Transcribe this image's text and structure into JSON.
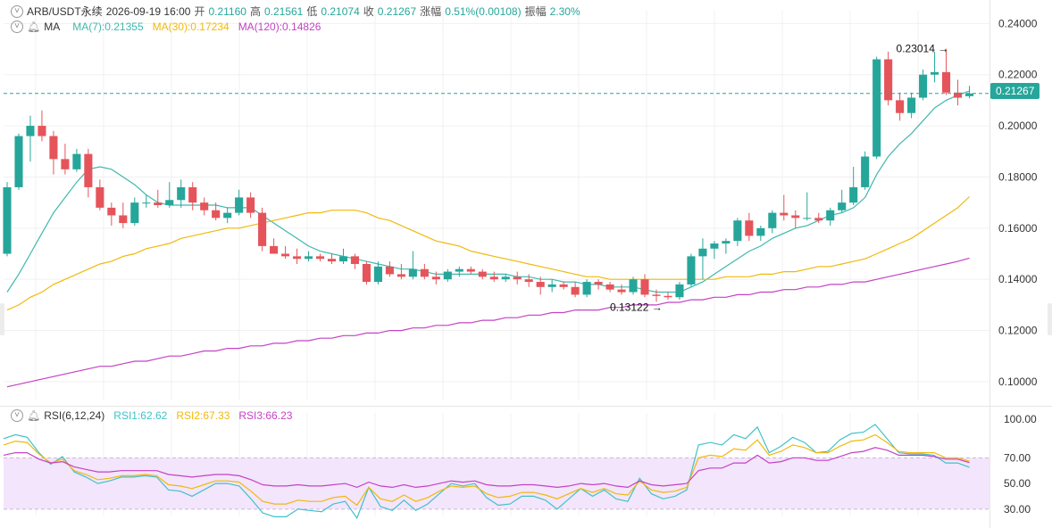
{
  "header": {
    "symbol": "ARB/USDT永续",
    "datetime": "2026-09-19 16:00",
    "open_label": "开",
    "open": "0.21160",
    "high_label": "高",
    "high": "0.21561",
    "low_label": "低",
    "low": "0.21074",
    "close_label": "收",
    "close": "0.21267",
    "change_label": "涨幅",
    "change": "0.51%(0.00108)",
    "amp_label": "振幅",
    "amp": "2.30%"
  },
  "ma_legend": {
    "label": "MA",
    "ma7": "MA(7):0.21355",
    "ma30": "MA(30):0.17234",
    "ma120": "MA(120):0.14826"
  },
  "rsi_legend": {
    "label": "RSI(6,12,24)",
    "rsi1": "RSI1:62.62",
    "rsi2": "RSI2:67.33",
    "rsi3": "RSI3:66.23"
  },
  "current_price_badge": "0.21267",
  "colors": {
    "up": "#26a69a",
    "down": "#e5545a",
    "ma7": "#3fb8ad",
    "ma30": "#f0b90b",
    "ma120": "#c442c4",
    "rsi1": "#3fc2c8",
    "rsi2": "#f0b90b",
    "rsi3": "#c442c4",
    "rsi_band": "#f3e5fb",
    "grid": "#f0f0f0",
    "axis_text": "#333333"
  },
  "chart_data": [
    {
      "type": "candlestick",
      "title": "",
      "y_ticks": [
        "0.24000",
        "0.22000",
        "0.20000",
        "0.18000",
        "0.16000",
        "0.14000",
        "0.12000",
        "0.10000"
      ],
      "ylim": [
        0.093,
        0.245
      ],
      "grid": true,
      "annotations": {
        "max_label": "0.23014",
        "min_label": "0.13122",
        "last_price": 0.21267
      },
      "candles": [
        {
          "o": 0.15,
          "h": 0.178,
          "l": 0.149,
          "c": 0.176
        },
        {
          "o": 0.176,
          "h": 0.197,
          "l": 0.175,
          "c": 0.196
        },
        {
          "o": 0.196,
          "h": 0.204,
          "l": 0.186,
          "c": 0.2
        },
        {
          "o": 0.2,
          "h": 0.206,
          "l": 0.194,
          "c": 0.196
        },
        {
          "o": 0.196,
          "h": 0.198,
          "l": 0.181,
          "c": 0.187
        },
        {
          "o": 0.187,
          "h": 0.193,
          "l": 0.181,
          "c": 0.183
        },
        {
          "o": 0.183,
          "h": 0.191,
          "l": 0.182,
          "c": 0.189
        },
        {
          "o": 0.189,
          "h": 0.191,
          "l": 0.172,
          "c": 0.176
        },
        {
          "o": 0.176,
          "h": 0.179,
          "l": 0.167,
          "c": 0.168
        },
        {
          "o": 0.168,
          "h": 0.17,
          "l": 0.161,
          "c": 0.165
        },
        {
          "o": 0.165,
          "h": 0.17,
          "l": 0.16,
          "c": 0.162
        },
        {
          "o": 0.162,
          "h": 0.172,
          "l": 0.161,
          "c": 0.17
        },
        {
          "o": 0.17,
          "h": 0.173,
          "l": 0.168,
          "c": 0.17
        },
        {
          "o": 0.17,
          "h": 0.175,
          "l": 0.168,
          "c": 0.169
        },
        {
          "o": 0.169,
          "h": 0.178,
          "l": 0.168,
          "c": 0.171
        },
        {
          "o": 0.171,
          "h": 0.179,
          "l": 0.168,
          "c": 0.176
        },
        {
          "o": 0.176,
          "h": 0.178,
          "l": 0.167,
          "c": 0.17
        },
        {
          "o": 0.17,
          "h": 0.172,
          "l": 0.165,
          "c": 0.167
        },
        {
          "o": 0.167,
          "h": 0.17,
          "l": 0.163,
          "c": 0.164
        },
        {
          "o": 0.164,
          "h": 0.168,
          "l": 0.162,
          "c": 0.166
        },
        {
          "o": 0.166,
          "h": 0.175,
          "l": 0.165,
          "c": 0.172
        },
        {
          "o": 0.172,
          "h": 0.174,
          "l": 0.164,
          "c": 0.166
        },
        {
          "o": 0.166,
          "h": 0.168,
          "l": 0.151,
          "c": 0.153
        },
        {
          "o": 0.153,
          "h": 0.156,
          "l": 0.15,
          "c": 0.15
        },
        {
          "o": 0.15,
          "h": 0.153,
          "l": 0.148,
          "c": 0.149
        },
        {
          "o": 0.149,
          "h": 0.152,
          "l": 0.146,
          "c": 0.148
        },
        {
          "o": 0.148,
          "h": 0.151,
          "l": 0.147,
          "c": 0.149
        },
        {
          "o": 0.149,
          "h": 0.15,
          "l": 0.147,
          "c": 0.148
        },
        {
          "o": 0.148,
          "h": 0.15,
          "l": 0.146,
          "c": 0.147
        },
        {
          "o": 0.147,
          "h": 0.152,
          "l": 0.146,
          "c": 0.149
        },
        {
          "o": 0.149,
          "h": 0.15,
          "l": 0.144,
          "c": 0.146
        },
        {
          "o": 0.146,
          "h": 0.147,
          "l": 0.138,
          "c": 0.139
        },
        {
          "o": 0.139,
          "h": 0.147,
          "l": 0.138,
          "c": 0.145
        },
        {
          "o": 0.145,
          "h": 0.147,
          "l": 0.141,
          "c": 0.142
        },
        {
          "o": 0.142,
          "h": 0.146,
          "l": 0.14,
          "c": 0.141
        },
        {
          "o": 0.141,
          "h": 0.151,
          "l": 0.14,
          "c": 0.144
        },
        {
          "o": 0.144,
          "h": 0.146,
          "l": 0.14,
          "c": 0.141
        },
        {
          "o": 0.141,
          "h": 0.143,
          "l": 0.138,
          "c": 0.14
        },
        {
          "o": 0.14,
          "h": 0.144,
          "l": 0.139,
          "c": 0.143
        },
        {
          "o": 0.143,
          "h": 0.145,
          "l": 0.141,
          "c": 0.144
        },
        {
          "o": 0.144,
          "h": 0.145,
          "l": 0.142,
          "c": 0.143
        },
        {
          "o": 0.143,
          "h": 0.144,
          "l": 0.14,
          "c": 0.141
        },
        {
          "o": 0.141,
          "h": 0.143,
          "l": 0.139,
          "c": 0.14
        },
        {
          "o": 0.14,
          "h": 0.142,
          "l": 0.139,
          "c": 0.141
        },
        {
          "o": 0.141,
          "h": 0.143,
          "l": 0.138,
          "c": 0.14
        },
        {
          "o": 0.14,
          "h": 0.142,
          "l": 0.137,
          "c": 0.139
        },
        {
          "o": 0.139,
          "h": 0.141,
          "l": 0.134,
          "c": 0.137
        },
        {
          "o": 0.137,
          "h": 0.14,
          "l": 0.135,
          "c": 0.138
        },
        {
          "o": 0.138,
          "h": 0.139,
          "l": 0.136,
          "c": 0.137
        },
        {
          "o": 0.137,
          "h": 0.139,
          "l": 0.133,
          "c": 0.134
        },
        {
          "o": 0.134,
          "h": 0.14,
          "l": 0.133,
          "c": 0.139
        },
        {
          "o": 0.139,
          "h": 0.14,
          "l": 0.136,
          "c": 0.138
        },
        {
          "o": 0.138,
          "h": 0.139,
          "l": 0.135,
          "c": 0.136
        },
        {
          "o": 0.136,
          "h": 0.138,
          "l": 0.134,
          "c": 0.135
        },
        {
          "o": 0.135,
          "h": 0.141,
          "l": 0.134,
          "c": 0.14
        },
        {
          "o": 0.14,
          "h": 0.142,
          "l": 0.133,
          "c": 0.134
        },
        {
          "o": 0.134,
          "h": 0.136,
          "l": 0.13122,
          "c": 0.1335
        },
        {
          "o": 0.1335,
          "h": 0.135,
          "l": 0.132,
          "c": 0.133
        },
        {
          "o": 0.133,
          "h": 0.139,
          "l": 0.132,
          "c": 0.138
        },
        {
          "o": 0.138,
          "h": 0.15,
          "l": 0.137,
          "c": 0.149
        },
        {
          "o": 0.149,
          "h": 0.156,
          "l": 0.14,
          "c": 0.152
        },
        {
          "o": 0.152,
          "h": 0.155,
          "l": 0.148,
          "c": 0.154
        },
        {
          "o": 0.154,
          "h": 0.156,
          "l": 0.15,
          "c": 0.155
        },
        {
          "o": 0.155,
          "h": 0.164,
          "l": 0.153,
          "c": 0.163
        },
        {
          "o": 0.163,
          "h": 0.166,
          "l": 0.155,
          "c": 0.157
        },
        {
          "o": 0.157,
          "h": 0.161,
          "l": 0.155,
          "c": 0.16
        },
        {
          "o": 0.16,
          "h": 0.167,
          "l": 0.158,
          "c": 0.166
        },
        {
          "o": 0.166,
          "h": 0.173,
          "l": 0.163,
          "c": 0.165
        },
        {
          "o": 0.165,
          "h": 0.167,
          "l": 0.16,
          "c": 0.164
        },
        {
          "o": 0.164,
          "h": 0.174,
          "l": 0.163,
          "c": 0.164
        },
        {
          "o": 0.164,
          "h": 0.166,
          "l": 0.162,
          "c": 0.163
        },
        {
          "o": 0.163,
          "h": 0.168,
          "l": 0.161,
          "c": 0.167
        },
        {
          "o": 0.167,
          "h": 0.175,
          "l": 0.166,
          "c": 0.17
        },
        {
          "o": 0.17,
          "h": 0.184,
          "l": 0.169,
          "c": 0.176
        },
        {
          "o": 0.176,
          "h": 0.19,
          "l": 0.175,
          "c": 0.188
        },
        {
          "o": 0.188,
          "h": 0.227,
          "l": 0.187,
          "c": 0.226
        },
        {
          "o": 0.226,
          "h": 0.229,
          "l": 0.208,
          "c": 0.21
        },
        {
          "o": 0.21,
          "h": 0.213,
          "l": 0.202,
          "c": 0.205
        },
        {
          "o": 0.205,
          "h": 0.213,
          "l": 0.203,
          "c": 0.211
        },
        {
          "o": 0.211,
          "h": 0.222,
          "l": 0.21,
          "c": 0.22
        },
        {
          "o": 0.22,
          "h": 0.229,
          "l": 0.217,
          "c": 0.221
        },
        {
          "o": 0.221,
          "h": 0.23014,
          "l": 0.212,
          "c": 0.213
        },
        {
          "o": 0.213,
          "h": 0.218,
          "l": 0.208,
          "c": 0.211
        },
        {
          "o": 0.2116,
          "h": 0.21561,
          "l": 0.21074,
          "c": 0.21267
        }
      ],
      "series": [
        {
          "name": "MA(7)",
          "values": [
            0.135,
            0.142,
            0.15,
            0.158,
            0.166,
            0.172,
            0.178,
            0.183,
            0.184,
            0.183,
            0.18,
            0.177,
            0.173,
            0.17,
            0.169,
            0.169,
            0.169,
            0.169,
            0.169,
            0.168,
            0.168,
            0.168,
            0.165,
            0.162,
            0.159,
            0.156,
            0.153,
            0.151,
            0.15,
            0.149,
            0.148,
            0.147,
            0.146,
            0.145,
            0.144,
            0.144,
            0.143,
            0.142,
            0.142,
            0.142,
            0.142,
            0.142,
            0.142,
            0.142,
            0.141,
            0.141,
            0.14,
            0.14,
            0.139,
            0.139,
            0.138,
            0.138,
            0.137,
            0.137,
            0.137,
            0.136,
            0.135,
            0.135,
            0.135,
            0.137,
            0.139,
            0.142,
            0.145,
            0.148,
            0.151,
            0.153,
            0.156,
            0.158,
            0.16,
            0.161,
            0.163,
            0.165,
            0.166,
            0.168,
            0.172,
            0.181,
            0.188,
            0.193,
            0.197,
            0.202,
            0.207,
            0.21,
            0.212,
            0.2136
          ]
        },
        {
          "name": "MA(30)",
          "values": [
            0.128,
            0.13,
            0.133,
            0.135,
            0.138,
            0.14,
            0.142,
            0.144,
            0.146,
            0.147,
            0.149,
            0.15,
            0.152,
            0.153,
            0.154,
            0.156,
            0.157,
            0.158,
            0.159,
            0.16,
            0.16,
            0.161,
            0.162,
            0.163,
            0.164,
            0.165,
            0.166,
            0.166,
            0.167,
            0.167,
            0.167,
            0.166,
            0.164,
            0.163,
            0.161,
            0.159,
            0.157,
            0.155,
            0.154,
            0.153,
            0.151,
            0.15,
            0.149,
            0.148,
            0.147,
            0.146,
            0.145,
            0.144,
            0.143,
            0.142,
            0.141,
            0.141,
            0.14,
            0.14,
            0.14,
            0.14,
            0.14,
            0.14,
            0.14,
            0.14,
            0.14,
            0.14,
            0.141,
            0.141,
            0.141,
            0.142,
            0.142,
            0.143,
            0.143,
            0.144,
            0.145,
            0.145,
            0.146,
            0.147,
            0.148,
            0.15,
            0.152,
            0.154,
            0.156,
            0.159,
            0.162,
            0.165,
            0.168,
            0.1723
          ]
        },
        {
          "name": "MA(120)",
          "values": [
            0.098,
            0.099,
            0.1,
            0.101,
            0.102,
            0.103,
            0.104,
            0.105,
            0.106,
            0.106,
            0.107,
            0.108,
            0.108,
            0.109,
            0.11,
            0.11,
            0.111,
            0.112,
            0.112,
            0.113,
            0.113,
            0.114,
            0.114,
            0.115,
            0.115,
            0.116,
            0.116,
            0.117,
            0.117,
            0.118,
            0.118,
            0.119,
            0.119,
            0.12,
            0.12,
            0.121,
            0.121,
            0.122,
            0.122,
            0.123,
            0.123,
            0.124,
            0.124,
            0.125,
            0.125,
            0.126,
            0.126,
            0.127,
            0.127,
            0.128,
            0.128,
            0.128,
            0.129,
            0.129,
            0.13,
            0.13,
            0.13,
            0.131,
            0.131,
            0.132,
            0.132,
            0.133,
            0.133,
            0.134,
            0.134,
            0.135,
            0.135,
            0.136,
            0.136,
            0.137,
            0.137,
            0.138,
            0.138,
            0.139,
            0.139,
            0.14,
            0.141,
            0.142,
            0.143,
            0.144,
            0.145,
            0.146,
            0.147,
            0.1483
          ]
        }
      ]
    },
    {
      "type": "line",
      "title": "",
      "y_ticks": [
        "100.00",
        "70.00",
        "50.00",
        "30.00"
      ],
      "ylim": [
        25,
        105
      ],
      "band": [
        30,
        70
      ],
      "series": [
        {
          "name": "RSI1",
          "values": [
            85,
            88,
            86,
            74,
            65,
            71,
            59,
            55,
            50,
            52,
            55,
            55,
            56,
            55,
            45,
            44,
            40,
            45,
            50,
            50,
            48,
            38,
            27,
            24,
            24,
            30,
            29,
            28,
            34,
            36,
            23,
            47,
            32,
            29,
            37,
            29,
            34,
            42,
            50,
            48,
            50,
            39,
            33,
            34,
            40,
            40,
            37,
            30,
            38,
            46,
            40,
            45,
            38,
            36,
            54,
            42,
            38,
            40,
            45,
            80,
            82,
            80,
            88,
            85,
            94,
            74,
            79,
            86,
            82,
            74,
            75,
            84,
            89,
            90,
            96,
            85,
            74,
            73,
            73,
            72,
            66,
            66,
            62.62
          ]
        },
        {
          "name": "RSI2",
          "values": [
            80,
            83,
            82,
            73,
            66,
            69,
            60,
            57,
            53,
            54,
            56,
            56,
            57,
            56,
            49,
            48,
            46,
            49,
            52,
            52,
            51,
            44,
            36,
            34,
            34,
            37,
            36,
            36,
            39,
            40,
            33,
            47,
            38,
            36,
            41,
            36,
            39,
            44,
            48,
            47,
            48,
            42,
            39,
            40,
            43,
            43,
            41,
            38,
            42,
            46,
            43,
            46,
            42,
            41,
            52,
            45,
            43,
            44,
            47,
            70,
            72,
            71,
            77,
            76,
            84,
            72,
            75,
            80,
            78,
            74,
            74,
            79,
            83,
            84,
            88,
            82,
            75,
            74,
            74,
            74,
            70,
            70,
            67.33
          ]
        },
        {
          "name": "RSI3",
          "values": [
            72,
            74,
            74,
            69,
            66,
            67,
            63,
            61,
            59,
            59,
            60,
            60,
            60,
            60,
            57,
            56,
            55,
            56,
            57,
            57,
            56,
            53,
            49,
            48,
            48,
            49,
            48,
            48,
            49,
            50,
            47,
            51,
            48,
            47,
            49,
            47,
            48,
            50,
            52,
            51,
            52,
            49,
            48,
            48,
            49,
            49,
            48,
            47,
            48,
            50,
            49,
            50,
            48,
            47,
            52,
            49,
            48,
            49,
            50,
            60,
            62,
            62,
            66,
            66,
            72,
            66,
            67,
            70,
            70,
            68,
            68,
            71,
            74,
            75,
            78,
            76,
            72,
            72,
            72,
            71,
            69,
            69,
            66.23
          ]
        }
      ]
    }
  ]
}
